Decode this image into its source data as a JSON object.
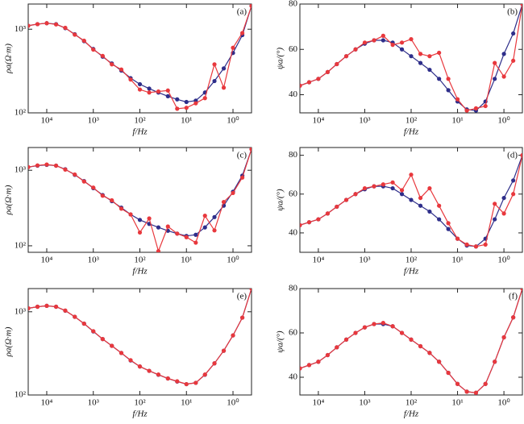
{
  "chart_data": [
    {
      "type": "line",
      "annotation": "(a)",
      "xlabel": "f/Hz",
      "ylabel": "ρa(Ω·m)",
      "xlog": true,
      "ylog": true,
      "x": [
        25000,
        15800,
        10000,
        6300,
        4000,
        2500,
        1580,
        1000,
        630,
        400,
        250,
        158,
        100,
        63,
        40,
        25,
        15.8,
        10,
        6.3,
        4,
        2.5,
        1.58,
        1,
        0.63,
        0.4
      ],
      "xlim": [
        25000,
        0.4
      ],
      "xticks": [
        {
          "value": 10000,
          "label": "10⁴"
        },
        {
          "value": 1000,
          "label": "10³"
        },
        {
          "value": 100,
          "label": "10²"
        },
        {
          "value": 10,
          "label": "10¹"
        },
        {
          "value": 1,
          "label": "10⁰"
        }
      ],
      "ylim": [
        100,
        2000
      ],
      "yticks": [
        {
          "value": 100,
          "label": "10²"
        },
        {
          "value": 1000,
          "label": "10³"
        }
      ],
      "series": [
        {
          "color": "#2e2e8a",
          "values": [
            1100,
            1150,
            1180,
            1150,
            1030,
            870,
            720,
            580,
            470,
            390,
            320,
            260,
            220,
            195,
            175,
            158,
            145,
            135,
            140,
            175,
            240,
            340,
            520,
            850,
            1900
          ]
        },
        {
          "color": "#e8383d",
          "values": [
            1100,
            1150,
            1180,
            1140,
            1040,
            860,
            730,
            570,
            480,
            380,
            330,
            250,
            190,
            175,
            180,
            185,
            112,
            115,
            130,
            150,
            380,
            200,
            600,
            900,
            1900
          ]
        }
      ]
    },
    {
      "type": "line",
      "annotation": "(b)",
      "xlabel": "f/Hz",
      "ylabel": "ψa/(°)",
      "xlog": true,
      "ylog": false,
      "x": [
        25000,
        15800,
        10000,
        6300,
        4000,
        2500,
        1580,
        1000,
        630,
        400,
        250,
        158,
        100,
        63,
        40,
        25,
        15.8,
        10,
        6.3,
        4,
        2.5,
        1.58,
        1,
        0.63,
        0.4
      ],
      "xlim": [
        25000,
        0.4
      ],
      "xticks": [
        {
          "value": 10000,
          "label": "10⁴"
        },
        {
          "value": 1000,
          "label": "10³"
        },
        {
          "value": 100,
          "label": "10²"
        },
        {
          "value": 10,
          "label": "10¹"
        },
        {
          "value": 1,
          "label": "10⁰"
        }
      ],
      "ylim": [
        32,
        80
      ],
      "yticks": [
        40,
        60,
        80
      ],
      "series": [
        {
          "color": "#2e2e8a",
          "values": [
            44,
            45.5,
            47,
            50,
            53.5,
            57,
            60,
            62.5,
            64,
            64,
            63,
            60,
            57,
            54,
            51,
            47,
            42,
            37,
            33.5,
            33,
            37,
            47,
            58,
            67,
            80
          ]
        },
        {
          "color": "#e8383d",
          "values": [
            44,
            45.5,
            47,
            50,
            53.5,
            57,
            60,
            63,
            64,
            66,
            62,
            63,
            64.5,
            58,
            57,
            58.5,
            47,
            38,
            33,
            34,
            35,
            54,
            48,
            55,
            80
          ]
        }
      ]
    },
    {
      "type": "line",
      "annotation": "(c)",
      "xlabel": "f/Hz",
      "ylabel": "ρa(Ω·m)",
      "xlog": true,
      "ylog": true,
      "x": [
        25000,
        15800,
        10000,
        6300,
        4000,
        2500,
        1580,
        1000,
        630,
        400,
        250,
        158,
        100,
        63,
        40,
        25,
        15.8,
        10,
        6.3,
        4,
        2.5,
        1.58,
        1,
        0.63,
        0.4
      ],
      "xlim": [
        25000,
        0.4
      ],
      "xticks": [
        {
          "value": 10000,
          "label": "10⁴"
        },
        {
          "value": 1000,
          "label": "10³"
        },
        {
          "value": 100,
          "label": "10²"
        },
        {
          "value": 10,
          "label": "10¹"
        },
        {
          "value": 1,
          "label": "10⁰"
        }
      ],
      "ylim": [
        82,
        2000
      ],
      "yticks": [
        {
          "value": 100,
          "label": "10²"
        },
        {
          "value": 1000,
          "label": "10³"
        }
      ],
      "series": [
        {
          "color": "#2e2e8a",
          "values": [
            1100,
            1150,
            1180,
            1150,
            1030,
            870,
            720,
            580,
            470,
            390,
            320,
            260,
            220,
            195,
            175,
            158,
            145,
            135,
            140,
            175,
            240,
            340,
            520,
            850,
            1900
          ]
        },
        {
          "color": "#e8383d",
          "values": [
            1100,
            1160,
            1190,
            1150,
            1020,
            880,
            710,
            590,
            460,
            400,
            310,
            260,
            150,
            230,
            85,
            180,
            145,
            130,
            110,
            250,
            160,
            380,
            500,
            800,
            1900
          ]
        }
      ]
    },
    {
      "type": "line",
      "annotation": "(d)",
      "xlabel": "f/Hz",
      "ylabel": "ψa/(°)",
      "xlog": true,
      "ylog": false,
      "x": [
        25000,
        15800,
        10000,
        6300,
        4000,
        2500,
        1580,
        1000,
        630,
        400,
        250,
        158,
        100,
        63,
        40,
        25,
        15.8,
        10,
        6.3,
        4,
        2.5,
        1.58,
        1,
        0.63,
        0.4
      ],
      "xlim": [
        25000,
        0.4
      ],
      "xticks": [
        {
          "value": 10000,
          "label": "10⁴"
        },
        {
          "value": 1000,
          "label": "10³"
        },
        {
          "value": 100,
          "label": "10²"
        },
        {
          "value": 10,
          "label": "10¹"
        },
        {
          "value": 1,
          "label": "10⁰"
        }
      ],
      "ylim": [
        30,
        84
      ],
      "yticks": [
        40,
        60,
        80
      ],
      "series": [
        {
          "color": "#2e2e8a",
          "values": [
            44,
            45.5,
            47,
            50,
            53.5,
            57,
            60,
            62.5,
            64,
            64,
            63,
            60,
            57,
            54,
            51,
            47,
            42,
            37,
            33.5,
            33,
            37,
            47,
            58,
            67,
            80
          ]
        },
        {
          "color": "#e8383d",
          "values": [
            44,
            45.5,
            47,
            50,
            53.5,
            57,
            60,
            63,
            64,
            65,
            66,
            62,
            70,
            58,
            63,
            54,
            45,
            37,
            34,
            33,
            34,
            55,
            50,
            60,
            80
          ]
        }
      ]
    },
    {
      "type": "line",
      "annotation": "(e)",
      "xlabel": "f/Hz",
      "ylabel": "ρa(Ω·m)",
      "xlog": true,
      "ylog": true,
      "x": [
        25000,
        15800,
        10000,
        6300,
        4000,
        2500,
        1580,
        1000,
        630,
        400,
        250,
        158,
        100,
        63,
        40,
        25,
        15.8,
        10,
        6.3,
        4,
        2.5,
        1.58,
        1,
        0.63,
        0.4
      ],
      "xlim": [
        25000,
        0.4
      ],
      "xticks": [
        {
          "value": 10000,
          "label": "10⁴"
        },
        {
          "value": 1000,
          "label": "10³"
        },
        {
          "value": 100,
          "label": "10²"
        },
        {
          "value": 10,
          "label": "10¹"
        },
        {
          "value": 1,
          "label": "10⁰"
        }
      ],
      "ylim": [
        100,
        1900
      ],
      "yticks": [
        {
          "value": 100,
          "label": "10²"
        },
        {
          "value": 1000,
          "label": "10³"
        }
      ],
      "series": [
        {
          "color": "#2e2e8a",
          "values": [
            1100,
            1150,
            1180,
            1150,
            1030,
            870,
            720,
            580,
            470,
            390,
            320,
            260,
            220,
            195,
            175,
            158,
            145,
            135,
            140,
            175,
            240,
            340,
            520,
            850,
            1900
          ]
        },
        {
          "color": "#e8383d",
          "values": [
            1100,
            1150,
            1180,
            1150,
            1035,
            870,
            720,
            585,
            470,
            390,
            320,
            262,
            220,
            195,
            176,
            158,
            146,
            135,
            140,
            176,
            240,
            340,
            520,
            850,
            1900
          ]
        }
      ]
    },
    {
      "type": "line",
      "annotation": "(f)",
      "xlabel": "f/Hz",
      "ylabel": "ψa/(°)",
      "xlog": true,
      "ylog": false,
      "x": [
        25000,
        15800,
        10000,
        6300,
        4000,
        2500,
        1580,
        1000,
        630,
        400,
        250,
        158,
        100,
        63,
        40,
        25,
        15.8,
        10,
        6.3,
        4,
        2.5,
        1.58,
        1,
        0.63,
        0.4
      ],
      "xlim": [
        25000,
        0.4
      ],
      "xticks": [
        {
          "value": 10000,
          "label": "10⁴"
        },
        {
          "value": 1000,
          "label": "10³"
        },
        {
          "value": 100,
          "label": "10²"
        },
        {
          "value": 10,
          "label": "10¹"
        },
        {
          "value": 1,
          "label": "10⁰"
        }
      ],
      "ylim": [
        32,
        80
      ],
      "yticks": [
        40,
        60,
        80
      ],
      "series": [
        {
          "color": "#2e2e8a",
          "values": [
            44,
            45.5,
            47,
            50,
            53.5,
            57,
            60,
            62.5,
            64,
            64,
            63,
            60,
            57,
            54,
            51,
            47,
            42,
            37,
            33.5,
            33,
            37,
            47,
            58,
            67,
            80
          ]
        },
        {
          "color": "#e8383d",
          "values": [
            44,
            45.5,
            47,
            50,
            53.5,
            57,
            60,
            62.5,
            64,
            64.5,
            63,
            60,
            57,
            54,
            51,
            47,
            42,
            37,
            33.5,
            33,
            37,
            47,
            58,
            67,
            80
          ]
        }
      ]
    }
  ]
}
